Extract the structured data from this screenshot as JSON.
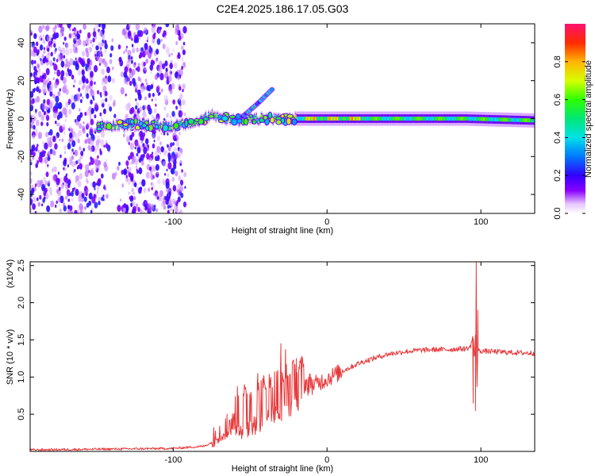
{
  "figure": {
    "title": "C2E4.2025.186.17.05.G03"
  },
  "chart_data": [
    {
      "type": "heatmap",
      "title": "C2E4.2025.186.17.05.G03",
      "xlabel": "Height of straight line (km)",
      "ylabel": "Frequency (Hz)",
      "xlim": [
        -193,
        135
      ],
      "ylim": [
        -50,
        50
      ],
      "xticks": [
        -100,
        0,
        100
      ],
      "yticks": [
        -40,
        -20,
        0,
        20,
        40
      ],
      "xtick_labels": [
        "-100",
        "0",
        "100"
      ],
      "ytick_labels": [
        "-40",
        "-20",
        "0",
        "20",
        "40"
      ],
      "grid": false,
      "colorbar": {
        "label": "Normalized spectral amplitude",
        "range": [
          0,
          1
        ],
        "ticks": [
          0.0,
          0.2,
          0.4,
          0.6,
          0.8
        ],
        "tick_labels": [
          "0.0",
          "0.2",
          "0.4",
          "0.6",
          "0.8"
        ],
        "colormap": "rainbow (white-violet-blue-cyan-green-yellow-red-magenta)"
      },
      "features": [
        {
          "description": "scattered noise",
          "x_range": [
            -193,
            -92
          ],
          "freq_range": [
            -50,
            50
          ]
        },
        {
          "description": "main frequency trace",
          "points": [
            [
              -150,
              -4
            ],
            [
              -120,
              -3
            ],
            [
              -100,
              -4
            ],
            [
              -85,
              -2
            ],
            [
              -75,
              2
            ],
            [
              -60,
              -1
            ],
            [
              -40,
              0
            ],
            [
              -20,
              0
            ],
            [
              0,
              0
            ],
            [
              50,
              0
            ],
            [
              90,
              0
            ],
            [
              135,
              -1
            ]
          ]
        },
        {
          "description": "rising branch",
          "points": [
            [
              -55,
              1
            ],
            [
              -45,
              8
            ],
            [
              -35,
              16
            ]
          ]
        }
      ]
    },
    {
      "type": "line",
      "xlabel": "Height of straight line (km)",
      "ylabel": "SNR (10 * v/v)",
      "y_multiplier": "(x10^4)",
      "xlim": [
        -193,
        135
      ],
      "ylim": [
        0,
        2.55
      ],
      "xticks": [
        -100,
        0,
        100
      ],
      "yticks": [
        0.5,
        1.0,
        1.5,
        2.0,
        2.5
      ],
      "xtick_labels": [
        "-100",
        "0",
        "100"
      ],
      "ytick_labels": [
        "0.5",
        "1.0",
        "1.5",
        "2.0",
        "2.5"
      ],
      "grid": false,
      "color": "#e8393b",
      "series_envelope": {
        "x": [
          -193,
          -150,
          -100,
          -80,
          -75,
          -70,
          -65,
          -60,
          -50,
          -40,
          -30,
          -20,
          -10,
          0,
          10,
          20,
          30,
          40,
          50,
          60,
          70,
          80,
          85,
          90,
          93,
          95,
          96,
          97,
          97.5,
          98,
          100,
          110,
          120,
          135
        ],
        "y": [
          0.02,
          0.03,
          0.04,
          0.07,
          0.12,
          0.2,
          0.28,
          0.35,
          0.45,
          0.55,
          0.65,
          0.75,
          0.88,
          0.98,
          1.08,
          1.18,
          1.25,
          1.31,
          1.34,
          1.36,
          1.37,
          1.37,
          1.38,
          1.38,
          1.4,
          1.55,
          1.2,
          1.95,
          0.9,
          1.35,
          1.35,
          1.34,
          1.33,
          1.32
        ]
      },
      "noise": [
        {
          "x_range": [
            -193,
            -75
          ],
          "amplitude": 0.015
        },
        {
          "x_range": [
            -75,
            -60
          ],
          "amplitude": 0.12
        },
        {
          "x_range": [
            -60,
            -15
          ],
          "amplitude": 0.32
        },
        {
          "x_range": [
            -15,
            10
          ],
          "amplitude": 0.12
        },
        {
          "x_range": [
            10,
            135
          ],
          "amplitude": 0.035
        }
      ],
      "spikes": [
        [
          -30,
          1.45
        ],
        [
          -27,
          1.37
        ],
        [
          -65,
          0.5
        ],
        [
          -45,
          1.05
        ],
        [
          -20,
          1.25
        ],
        [
          97,
          2.55
        ],
        [
          96.5,
          0.55
        ],
        [
          98,
          1.9
        ],
        [
          95,
          0.65
        ]
      ]
    }
  ]
}
